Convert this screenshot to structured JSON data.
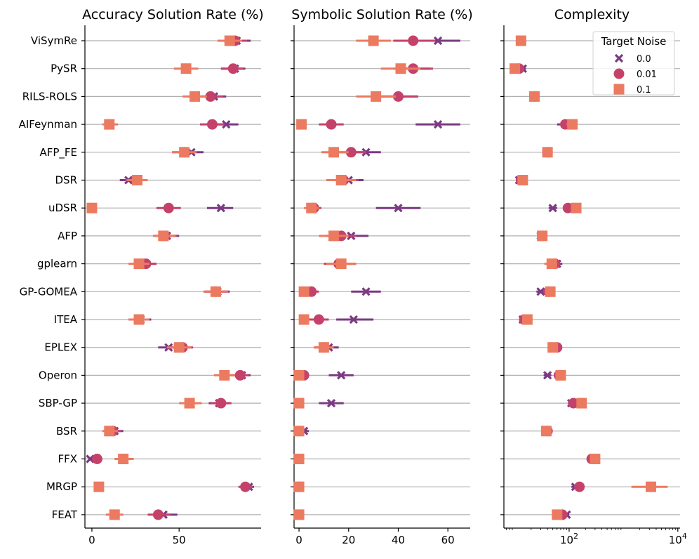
{
  "chart_data": {
    "type": "scatter",
    "methods": [
      "ViSymRe",
      "PySR",
      "RILS-ROLS",
      "AIFeynman",
      "AFP_FE",
      "DSR",
      "uDSR",
      "AFP",
      "gplearn",
      "GP-GOMEA",
      "ITEA",
      "EPLEX",
      "Operon",
      "SBP-GP",
      "BSR",
      "FFX",
      "MRGP",
      "FEAT"
    ],
    "legend": {
      "title": "Target Noise",
      "entries": [
        {
          "label": "0.0",
          "marker": "x",
          "color": "#7b3a82"
        },
        {
          "label": "0.01",
          "marker": "circle",
          "color": "#c4426a"
        },
        {
          "label": "0.1",
          "marker": "square",
          "color": "#ec7a60"
        }
      ],
      "placement": "upper-right of third panel"
    },
    "panels": [
      {
        "title": "Accuracy Solution Rate (%)",
        "scale": "linear",
        "xlim": [
          -4,
          97
        ],
        "xticks": [
          {
            "v": 0,
            "label": "0"
          },
          {
            "v": 50,
            "label": "50"
          }
        ],
        "series": {
          "0.0": [
            [
              83,
              76,
              91
            ],
            [
              82,
              74,
              88
            ],
            [
              70,
              63,
              77
            ],
            [
              77,
              70,
              84
            ],
            [
              57,
              50,
              64
            ],
            [
              21,
              16,
              27
            ],
            [
              74,
              66,
              81
            ],
            [
              43,
              37,
              50
            ],
            [
              31,
              26,
              37
            ],
            [
              72,
              65,
              79
            ],
            [
              28,
              22,
              34
            ],
            [
              44,
              38,
              51
            ],
            [
              86,
              80,
              91
            ],
            [
              73,
              67,
              79
            ],
            [
              13,
              9,
              18
            ],
            [
              -1,
              -2,
              1
            ],
            [
              90,
              86,
              93
            ],
            [
              41,
              35,
              49
            ]
          ],
          "0.01": [
            [
              82,
              75,
              89
            ],
            [
              81,
              74,
              87
            ],
            [
              68,
              62,
              75
            ],
            [
              69,
              62,
              76
            ],
            [
              53,
              46,
              59
            ],
            [
              25,
              19,
              31
            ],
            [
              44,
              37,
              51
            ],
            [
              42,
              36,
              49
            ],
            [
              31,
              25,
              37
            ],
            [
              71,
              64,
              78
            ],
            [
              27,
              21,
              33
            ],
            [
              52,
              45,
              58
            ],
            [
              85,
              79,
              90
            ],
            [
              74,
              68,
              80
            ],
            [
              12,
              8,
              17
            ],
            [
              3,
              1,
              6
            ],
            [
              88,
              84,
              92
            ],
            [
              38,
              32,
              45
            ]
          ],
          "0.1": [
            [
              79,
              72,
              86
            ],
            [
              54,
              47,
              61
            ],
            [
              59,
              52,
              66
            ],
            [
              10,
              6,
              15
            ],
            [
              53,
              46,
              60
            ],
            [
              26,
              20,
              32
            ],
            [
              0,
              -1,
              1
            ],
            [
              41,
              35,
              48
            ],
            [
              27,
              21,
              33
            ],
            [
              71,
              64,
              78
            ],
            [
              27,
              21,
              33
            ],
            [
              50,
              43,
              57
            ],
            [
              76,
              70,
              82
            ],
            [
              56,
              50,
              63
            ],
            [
              10,
              6,
              15
            ],
            [
              18,
              13,
              24
            ],
            [
              4,
              2,
              6
            ],
            [
              13,
              8,
              18
            ]
          ]
        }
      },
      {
        "title": "Symbolic Solution Rate (%)",
        "scale": "linear",
        "xlim": [
          -2,
          69
        ],
        "xticks": [
          {
            "v": 0,
            "label": "0"
          },
          {
            "v": 20,
            "label": "20"
          },
          {
            "v": 40,
            "label": "40"
          },
          {
            "v": 60,
            "label": "60"
          }
        ],
        "series": {
          "0.0": [
            [
              56,
              47,
              65
            ],
            [
              46,
              38,
              53
            ],
            [
              40,
              32,
              48
            ],
            [
              56,
              47,
              65
            ],
            [
              27,
              21,
              33
            ],
            [
              20,
              14,
              26
            ],
            [
              40,
              31,
              49
            ],
            [
              21,
              15,
              28
            ],
            [
              17,
              11,
              23
            ],
            [
              27,
              21,
              33
            ],
            [
              22,
              15,
              30
            ],
            [
              12,
              8,
              16
            ],
            [
              17,
              12,
              22
            ],
            [
              13,
              8,
              18
            ],
            [
              2,
              1,
              4
            ],
            [
              0,
              0,
              1
            ],
            [
              0,
              0,
              1
            ],
            [
              0,
              0,
              1
            ]
          ],
          "0.01": [
            [
              46,
              38,
              55
            ],
            [
              46,
              39,
              54
            ],
            [
              40,
              33,
              48
            ],
            [
              13,
              8,
              18
            ],
            [
              21,
              15,
              27
            ],
            [
              18,
              12,
              24
            ],
            [
              6,
              3,
              9
            ],
            [
              17,
              11,
              23
            ],
            [
              16,
              10,
              22
            ],
            [
              5,
              2,
              8
            ],
            [
              8,
              4,
              12
            ],
            [
              10,
              6,
              14
            ],
            [
              2,
              1,
              4
            ],
            [
              0,
              0,
              1
            ],
            [
              0,
              0,
              1
            ],
            [
              0,
              0,
              1
            ],
            [
              0,
              0,
              1
            ],
            [
              0,
              0,
              1
            ]
          ],
          "0.1": [
            [
              30,
              23,
              37
            ],
            [
              41,
              33,
              49
            ],
            [
              31,
              23,
              39
            ],
            [
              1,
              0,
              2
            ],
            [
              14,
              9,
              20
            ],
            [
              17,
              11,
              23
            ],
            [
              5,
              2,
              8
            ],
            [
              14,
              8,
              20
            ],
            [
              17,
              11,
              23
            ],
            [
              2,
              0,
              4
            ],
            [
              2,
              0,
              4
            ],
            [
              10,
              6,
              14
            ],
            [
              0,
              0,
              1
            ],
            [
              0,
              0,
              1
            ],
            [
              0,
              0,
              1
            ],
            [
              0,
              0,
              1
            ],
            [
              0,
              0,
              1
            ],
            [
              0,
              0,
              1
            ]
          ]
        }
      },
      {
        "title": "Complexity",
        "scale": "log",
        "xlim": [
          6.3,
          11000
        ],
        "xticks": [
          {
            "v": 100,
            "label": "10",
            "sup": "2"
          },
          {
            "v": 10000,
            "label": "10",
            "sup": "4"
          }
        ],
        "series": {
          "0.0": [
            [
              13,
              11,
              15
            ],
            [
              14,
              12,
              16
            ],
            [
              23,
              20,
              26
            ],
            [
              85,
              60,
              110
            ],
            [
              38,
              33,
              43
            ],
            [
              12,
              11,
              14
            ],
            [
              50,
              42,
              60
            ],
            [
              30,
              26,
              35
            ],
            [
              60,
              45,
              75
            ],
            [
              30,
              25,
              35
            ],
            [
              14,
              12,
              16
            ],
            [
              60,
              52,
              68
            ],
            [
              40,
              34,
              47
            ],
            [
              110,
              95,
              125
            ],
            [
              38,
              34,
              42
            ],
            [
              260,
              230,
              290
            ],
            [
              130,
              110,
              150
            ],
            [
              90,
              80,
              100
            ]
          ],
          "0.01": [
            [
              13,
              11,
              15
            ],
            [
              12,
              10,
              14
            ],
            [
              23,
              20,
              26
            ],
            [
              85,
              70,
              100
            ],
            [
              40,
              35,
              45
            ],
            [
              13,
              11,
              15
            ],
            [
              95,
              80,
              110
            ],
            [
              32,
              28,
              36
            ],
            [
              55,
              45,
              65
            ],
            [
              42,
              37,
              47
            ],
            [
              15,
              13,
              17
            ],
            [
              60,
              52,
              68
            ],
            [
              65,
              56,
              75
            ],
            [
              120,
              105,
              135
            ],
            [
              40,
              36,
              44
            ],
            [
              260,
              230,
              290
            ],
            [
              155,
              135,
              175
            ],
            [
              75,
              65,
              85
            ]
          ],
          "0.1": [
            [
              13,
              11,
              15
            ],
            [
              10,
              8,
              12
            ],
            [
              23,
              20,
              26
            ],
            [
              115,
              90,
              140
            ],
            [
              40,
              35,
              45
            ],
            [
              14,
              12,
              16
            ],
            [
              135,
              115,
              155
            ],
            [
              32,
              28,
              36
            ],
            [
              48,
              35,
              60
            ],
            [
              45,
              40,
              50
            ],
            [
              17,
              14,
              20
            ],
            [
              50,
              44,
              56
            ],
            [
              70,
              60,
              80
            ],
            [
              170,
              150,
              195
            ],
            [
              38,
              34,
              42
            ],
            [
              300,
              270,
              330
            ],
            [
              3200,
              1400,
              6500
            ],
            [
              60,
              52,
              68
            ]
          ]
        }
      }
    ]
  }
}
